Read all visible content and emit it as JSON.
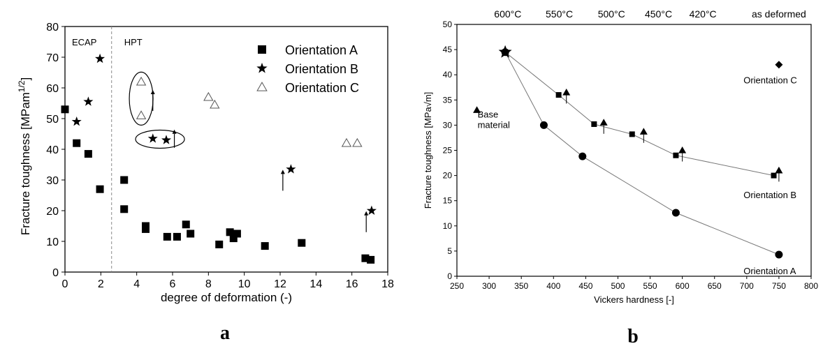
{
  "chart_data": [
    {
      "type": "scatter",
      "panel_label": "a",
      "xlabel": "degree of deformation (-)",
      "ylabel": "Fracture toughness [MPam",
      "ylabel_sup": "1/2",
      "ylabel_end": "]",
      "xlim": [
        0,
        18
      ],
      "ylim": [
        0,
        80
      ],
      "xticks": [
        "0",
        "2",
        "4",
        "6",
        "8",
        "10",
        "12",
        "14",
        "16",
        "18"
      ],
      "yticks": [
        "0",
        "10",
        "20",
        "30",
        "40",
        "50",
        "60",
        "70",
        "80"
      ],
      "regions": [
        {
          "label": "ECAP",
          "x_from": 0,
          "x_to": 2.6
        },
        {
          "label": "HPT",
          "x_from": 2.6,
          "x_to": 18
        }
      ],
      "divider_x": 2.6,
      "legend_position": "top-right",
      "series": [
        {
          "name": "Orientation A",
          "marker": "square",
          "x": [
            0,
            0.65,
            1.3,
            1.95,
            3.3,
            3.3,
            4.5,
            4.5,
            5.7,
            6.25,
            6.75,
            7.0,
            8.6,
            9.2,
            9.4,
            9.6,
            11.15,
            13.2,
            16.75,
            17.05
          ],
          "y": [
            53,
            42,
            38.5,
            27,
            30,
            20.5,
            15,
            14,
            11.5,
            11.5,
            15.5,
            12.5,
            9,
            13,
            11,
            12.5,
            8.5,
            9.5,
            4.5,
            4
          ]
        },
        {
          "name": "Orientation B",
          "marker": "star",
          "x": [
            0.65,
            1.3,
            1.95,
            4.9,
            5.65,
            12.6,
            17.1
          ],
          "y": [
            49,
            55.5,
            69.5,
            43.5,
            43,
            33.5,
            20
          ],
          "lower_bound_arrows": [
            3,
            4,
            5,
            6
          ]
        },
        {
          "name": "Orientation C",
          "marker": "open-triangle",
          "x": [
            4.25,
            4.25,
            8.0,
            8.35,
            15.7,
            16.3
          ],
          "y": [
            62,
            51,
            57,
            54.5,
            42,
            42
          ],
          "lower_bound_arrows": [
            0,
            1
          ]
        }
      ]
    },
    {
      "type": "line",
      "panel_label": "b",
      "xlabel": "Vickers hardness [-]",
      "ylabel": "Fracture toughness [MPa√m]",
      "xlim": [
        250,
        800
      ],
      "ylim": [
        0,
        50
      ],
      "xticks": [
        "250",
        "300",
        "350",
        "400",
        "450",
        "500",
        "550",
        "600",
        "650",
        "700",
        "750",
        "800"
      ],
      "yticks": [
        "0",
        "5",
        "10",
        "15",
        "20",
        "25",
        "30",
        "35",
        "40",
        "45",
        "50"
      ],
      "top_axis_labels": [
        {
          "text": "600°C",
          "x": 329
        },
        {
          "text": "550°C",
          "x": 409
        },
        {
          "text": "500°C",
          "x": 490
        },
        {
          "text": "450°C",
          "x": 563
        },
        {
          "text": "420°C",
          "x": 632
        },
        {
          "text": "as deformed",
          "x": 750
        }
      ],
      "series": [
        {
          "name": "Orientation A",
          "marker": "circle",
          "x": [
            325,
            385,
            445,
            590,
            750
          ],
          "y": [
            44.5,
            30,
            23.8,
            12.6,
            4.3
          ]
        },
        {
          "name": "Orientation B",
          "marker": "square",
          "x": [
            325,
            408,
            463,
            522,
            590,
            742
          ],
          "y": [
            44.5,
            36,
            30.2,
            28.2,
            24,
            20
          ]
        },
        {
          "name": "",
          "marker": "triangle-with-arrow",
          "x": [
            420,
            478,
            540,
            600,
            750
          ],
          "y": [
            36.5,
            30.5,
            28.7,
            25,
            21
          ]
        },
        {
          "name": "Base material",
          "marker": "triangle",
          "x": [
            281
          ],
          "y": [
            33
          ]
        },
        {
          "name": "Orientation C",
          "marker": "diamond",
          "x": [
            750
          ],
          "y": [
            42
          ]
        }
      ],
      "annotations": [
        {
          "text": "Base material",
          "lines": [
            "Base",
            "material"
          ],
          "x": 255,
          "y": 31.5
        },
        {
          "text": "Orientation C",
          "x": 695,
          "y": 38.3
        },
        {
          "text": "Orientation B",
          "x": 695,
          "y": 15.5
        },
        {
          "text": "Orientation A",
          "x": 695,
          "y": 0.4
        }
      ],
      "start_point": {
        "x": 325,
        "y": 44.5,
        "marker": "star"
      }
    }
  ]
}
